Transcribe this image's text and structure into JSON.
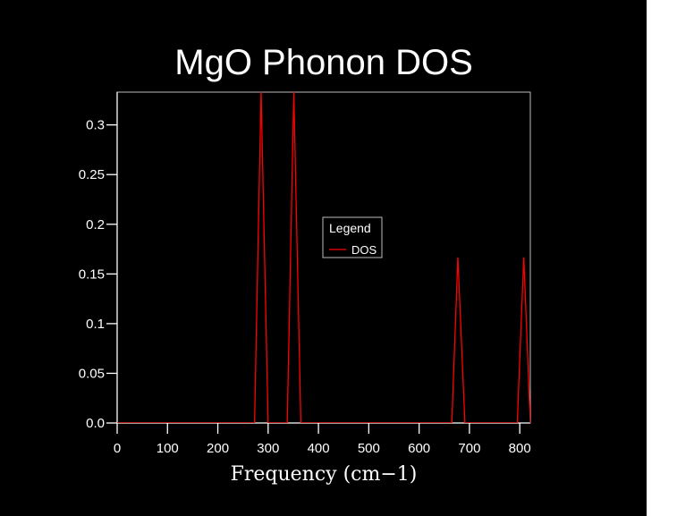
{
  "chart_data": {
    "type": "line",
    "title": "MgO Phonon DOS",
    "xlabel": "Frequency (cm−1)",
    "ylabel": "",
    "xlim": [
      0,
      821
    ],
    "ylim": [
      0,
      0.333
    ],
    "xticks": [
      0,
      100,
      200,
      300,
      400,
      500,
      600,
      700,
      800
    ],
    "xtick_labels": [
      "0",
      "100",
      "200",
      "300",
      "400",
      "500",
      "600",
      "700",
      "800"
    ],
    "yticks": [
      0,
      0.05,
      0.1,
      0.15,
      0.2,
      0.25,
      0.3
    ],
    "ytick_labels": [
      "0.0",
      "0.05",
      "0.1",
      "0.15",
      "0.2",
      "0.25",
      "0.3"
    ],
    "grid": false,
    "legend": {
      "title": "Legend",
      "placement": "center",
      "entries": [
        "DOS"
      ]
    },
    "series": [
      {
        "name": "DOS",
        "color": "#ff0000",
        "x": [
          0,
          273,
          286,
          300,
          338,
          351,
          365,
          665,
          677,
          691,
          795,
          808,
          821
        ],
        "y": [
          0,
          0,
          0.3333,
          0,
          0,
          0.3333,
          0,
          0,
          0.1667,
          0,
          0,
          0.1667,
          0
        ]
      }
    ]
  }
}
